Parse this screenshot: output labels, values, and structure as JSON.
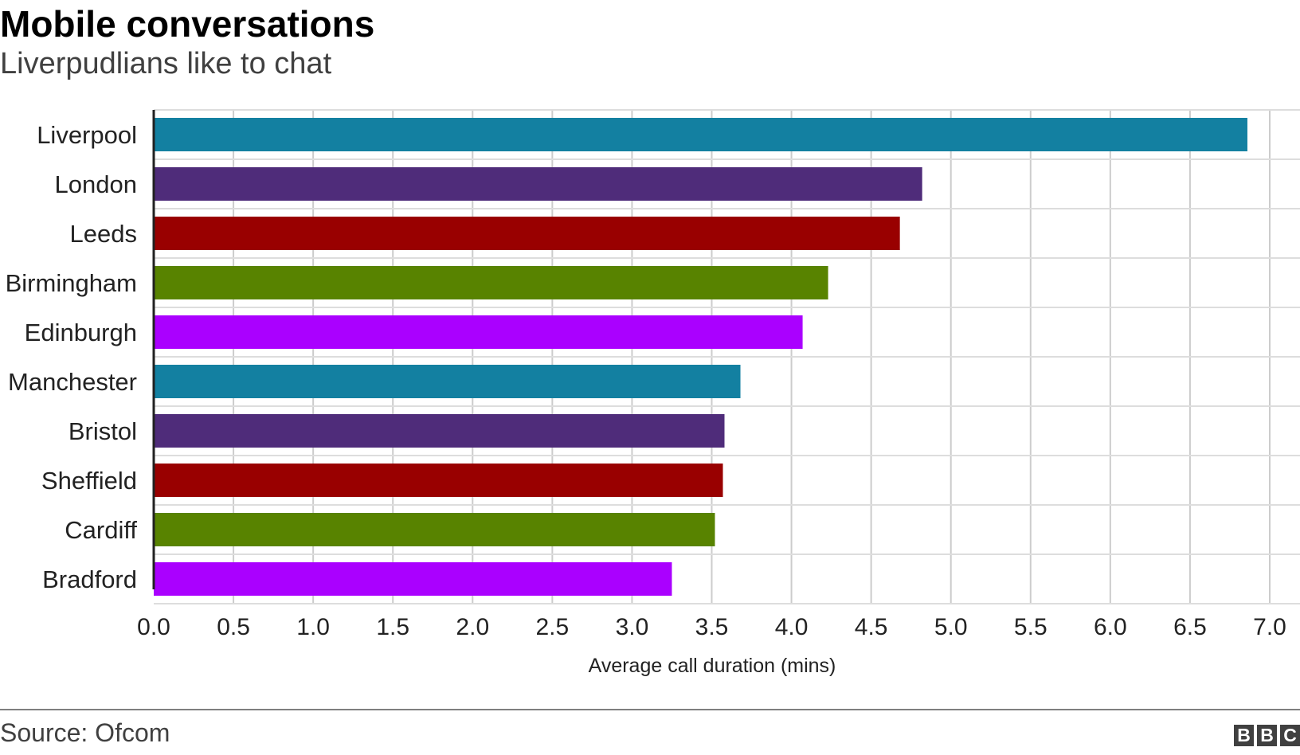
{
  "header": {
    "title": "Mobile conversations",
    "subtitle": "Liverpudlians like to chat"
  },
  "footer": {
    "source": "Source: Ofcom",
    "logo_letters": [
      "B",
      "B",
      "C"
    ]
  },
  "chart_data": {
    "type": "bar",
    "orientation": "horizontal",
    "title": "Mobile conversations",
    "subtitle": "Liverpudlians like to chat",
    "xlabel": "Average call duration (mins)",
    "ylabel": "",
    "xlim": [
      0,
      7.0
    ],
    "xticks": [
      "0.0",
      "0.5",
      "1.0",
      "1.5",
      "2.0",
      "2.5",
      "3.0",
      "3.5",
      "4.0",
      "4.5",
      "5.0",
      "5.5",
      "6.0",
      "6.5",
      "7.0"
    ],
    "grid": true,
    "categories": [
      "Liverpool",
      "London",
      "Leeds",
      "Birmingham",
      "Edinburgh",
      "Manchester",
      "Bristol",
      "Sheffield",
      "Cardiff",
      "Bradford"
    ],
    "values": [
      6.86,
      4.82,
      4.68,
      4.23,
      4.07,
      3.68,
      3.58,
      3.57,
      3.52,
      3.25
    ],
    "colors": [
      "#1380A1",
      "#4F2C7A",
      "#990000",
      "#588300",
      "#AA00FF",
      "#1380A1",
      "#4F2C7A",
      "#990000",
      "#588300",
      "#AA00FF"
    ],
    "source": "Source: Ofcom"
  }
}
